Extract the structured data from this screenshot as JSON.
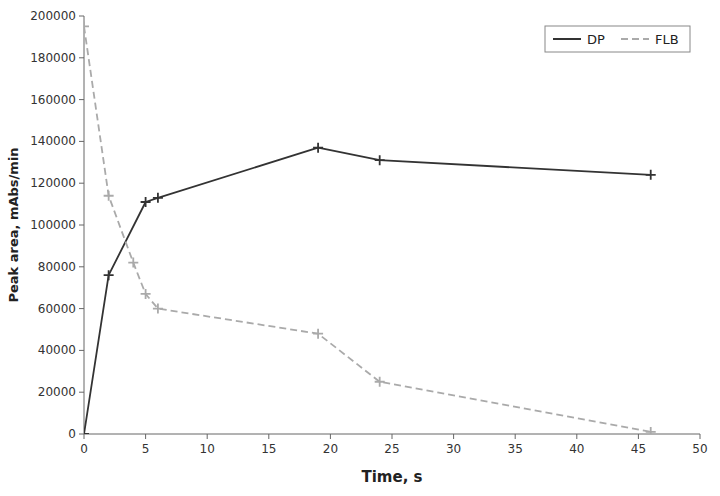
{
  "chart_data": {
    "type": "line",
    "xlabel": "Time, s",
    "ylabel": "Peak area, mAbs/min",
    "series": [
      {
        "name": "DP",
        "color": "#333333",
        "line_style": "solid",
        "marker": "plus",
        "x": [
          0,
          2,
          5,
          6,
          19,
          24,
          46
        ],
        "values": [
          0,
          76000,
          111000,
          113000,
          137000,
          131000,
          124000
        ]
      },
      {
        "name": "FLB",
        "color": "#aaaaaa",
        "line_style": "dashed",
        "marker": "plus",
        "x": [
          0,
          2,
          4,
          5,
          6,
          19,
          24,
          46
        ],
        "values": [
          195000,
          114000,
          82000,
          67000,
          60000,
          48000,
          25000,
          1000
        ]
      }
    ],
    "xlim": [
      0,
      50
    ],
    "ylim": [
      0,
      200000
    ],
    "xticks": [
      0,
      5,
      10,
      15,
      20,
      25,
      30,
      35,
      40,
      45,
      50
    ],
    "yticks": [
      0,
      20000,
      40000,
      60000,
      80000,
      100000,
      120000,
      140000,
      160000,
      180000,
      200000
    ],
    "legend": "upper right",
    "grid": false
  }
}
